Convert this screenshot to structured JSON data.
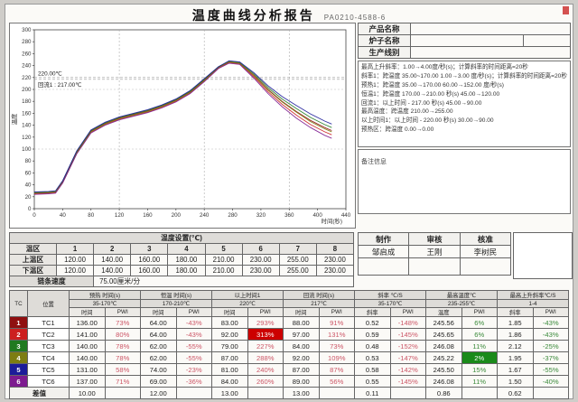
{
  "title": {
    "main": "温度曲线分析报告",
    "code": "PA0210-4588-6"
  },
  "info_panel": {
    "fields": [
      {
        "label": "产品名称",
        "value": "",
        "split": false
      },
      {
        "label": "炉子名称",
        "value": "",
        "split": true
      },
      {
        "label": "生产线别",
        "value": "",
        "split": false
      }
    ],
    "spec_lines": [
      "最高上升斜率：1.00→4.00度/秒(s)；计算斜率的时间距离=20秒",
      "斜率1：跨温度 35.00~170.00  1.00→3.00 度/秒(s)；计算斜率的时间距离=20秒",
      "预热1：跨温度 35.00→170.00  60.00→152.00 度/秒(s)",
      "恒温1：跨温度 170.00→210.00 秒(s)  45.00→120.00",
      "回流1：以上时间 - 217.00 秒(s)  45.00→90.00",
      "最高温度：跨温度 210.00→255.00",
      "以上时间1：以上时间 - 220.00 秒(s)  30.00→90.00",
      "预热区：跨温度 0.00→0.00"
    ],
    "note_label": "备注信息"
  },
  "chart_data": {
    "type": "line",
    "title": "",
    "xlabel": "时间(秒)",
    "ylabel": "温度",
    "xlim": [
      0,
      440
    ],
    "ylim": [
      0,
      300
    ],
    "x_tick_step": 40,
    "y_tick_step": 20,
    "grid_x_dashed": [
      120,
      240,
      360
    ],
    "grid_y_dashed": [
      100,
      200
    ],
    "ref_lines": [
      {
        "y": 220,
        "label": "220.00℃"
      },
      {
        "y": 217,
        "label": "回流1 : 217.00℃"
      }
    ],
    "x": [
      0,
      20,
      30,
      40,
      60,
      80,
      100,
      120,
      140,
      160,
      180,
      200,
      220,
      240,
      260,
      275,
      290,
      310,
      330,
      350,
      370,
      390,
      410,
      420
    ],
    "series": [
      {
        "name": "TC1",
        "color": "#8f1010",
        "values": [
          26,
          27,
          28,
          45,
          95,
          130,
          143,
          152,
          158,
          164,
          172,
          182,
          196,
          216,
          237,
          246,
          244,
          224,
          200,
          180,
          163,
          148,
          136,
          131
        ]
      },
      {
        "name": "TC2",
        "color": "#cc1f1f",
        "values": [
          25,
          26,
          27,
          44,
          93,
          128,
          141,
          150,
          156,
          162,
          170,
          180,
          194,
          214,
          236,
          245,
          243,
          221,
          196,
          175,
          157,
          141,
          129,
          124
        ]
      },
      {
        "name": "TC3",
        "color": "#207a20",
        "values": [
          27,
          28,
          29,
          46,
          96,
          131,
          144,
          153,
          159,
          165,
          173,
          183,
          197,
          217,
          238,
          247,
          245,
          226,
          203,
          184,
          168,
          153,
          141,
          136
        ]
      },
      {
        "name": "TC4",
        "color": "#7d7d12",
        "values": [
          26,
          27,
          28,
          45,
          94,
          129,
          142,
          151,
          157,
          163,
          171,
          181,
          195,
          215,
          237,
          246,
          244,
          223,
          199,
          179,
          162,
          146,
          134,
          129
        ]
      },
      {
        "name": "TC5",
        "color": "#1c1c99",
        "values": [
          28,
          29,
          30,
          47,
          97,
          132,
          145,
          154,
          160,
          166,
          174,
          184,
          198,
          218,
          238,
          248,
          246,
          228,
          206,
          188,
          173,
          159,
          147,
          142
        ]
      },
      {
        "name": "TC6",
        "color": "#7d1b8f",
        "values": [
          24,
          25,
          26,
          43,
          92,
          127,
          140,
          149,
          155,
          161,
          169,
          179,
          193,
          213,
          235,
          244,
          242,
          219,
          193,
          171,
          152,
          136,
          123,
          118
        ]
      }
    ]
  },
  "settings_table": {
    "title": "温度设置(℃)",
    "zone_header": "温区",
    "zones": [
      "1",
      "2",
      "3",
      "4",
      "5",
      "6",
      "7",
      "8"
    ],
    "rows": [
      {
        "label": "上温区",
        "values": [
          "120.00",
          "140.00",
          "160.00",
          "180.00",
          "210.00",
          "230.00",
          "255.00",
          "230.00"
        ]
      },
      {
        "label": "下温区",
        "values": [
          "120.00",
          "140.00",
          "160.00",
          "180.00",
          "210.00",
          "230.00",
          "255.00",
          "230.00"
        ]
      }
    ],
    "speed_label": "链条速度",
    "speed_value": "75.00厘米/分"
  },
  "signoff": {
    "headers": [
      "制作",
      "审核",
      "核准"
    ],
    "names": [
      "邹启成",
      "王刚",
      "李树民"
    ]
  },
  "bottom_table": {
    "tc_header": "TC",
    "pos_header": "位置",
    "groups": [
      {
        "name": "预热 时间(s)",
        "range": "35-170℃",
        "col1": "时间",
        "col2": "PWI",
        "pwi_class": "pwi-pink"
      },
      {
        "name": "恒温 时间(s)",
        "range": "170-210℃",
        "col1": "时间",
        "col2": "PWI",
        "pwi_class": "pwi-pink"
      },
      {
        "name": "以上时间1",
        "range": "220℃",
        "col1": "时间",
        "col2": "PWI",
        "pwi_class": "pwi-pink"
      },
      {
        "name": "回流 时间(s)",
        "range": "217℃",
        "col1": "时间",
        "col2": "PWI",
        "pwi_class": "pwi-pink"
      },
      {
        "name": "斜率 ℃/S",
        "range": "35-170℃",
        "col1": "斜率",
        "col2": "PWI",
        "pwi_class": "pwi-pink"
      },
      {
        "name": "最高温度℃",
        "range": "235-255℃",
        "col1": "温度",
        "col2": "PWI",
        "pwi_class": "pwi-green"
      },
      {
        "name": "最高上升斜率℃/S",
        "range": "1-4",
        "col1": "斜率",
        "col2": "PWI",
        "pwi_class": "pwi-green"
      }
    ],
    "rows": [
      {
        "tc": "1",
        "color": "#8f1010",
        "pos": "TC1",
        "values": [
          "136.00",
          "73%",
          "64.00",
          "-43%",
          "83.00",
          "293%",
          "88.00",
          "91%",
          "0.52",
          "-148%",
          "245.56",
          "6%",
          "1.85",
          "-43%"
        ],
        "highlight": {}
      },
      {
        "tc": "2",
        "color": "#cc1f1f",
        "pos": "TC2",
        "values": [
          "141.00",
          "80%",
          "64.00",
          "-43%",
          "92.00",
          "313%",
          "97.00",
          "131%",
          "0.59",
          "-145%",
          "245.65",
          "6%",
          "1.86",
          "-43%"
        ],
        "highlight": {
          "5": "red-bg"
        }
      },
      {
        "tc": "3",
        "color": "#207a20",
        "pos": "TC3",
        "values": [
          "140.00",
          "78%",
          "62.00",
          "-55%",
          "79.00",
          "227%",
          "84.00",
          "73%",
          "0.48",
          "-152%",
          "246.08",
          "11%",
          "2.12",
          "-25%"
        ],
        "highlight": {}
      },
      {
        "tc": "4",
        "color": "#7d7d12",
        "pos": "TC4",
        "values": [
          "140.00",
          "78%",
          "62.00",
          "-55%",
          "87.00",
          "288%",
          "92.00",
          "109%",
          "0.53",
          "-147%",
          "245.22",
          "2%",
          "1.95",
          "-37%"
        ],
        "highlight": {
          "11": "green-bg"
        }
      },
      {
        "tc": "5",
        "color": "#1c1c99",
        "pos": "TC5",
        "values": [
          "131.00",
          "58%",
          "74.00",
          "-23%",
          "81.00",
          "240%",
          "87.00",
          "87%",
          "0.58",
          "-142%",
          "245.50",
          "15%",
          "1.67",
          "-55%"
        ],
        "highlight": {}
      },
      {
        "tc": "6",
        "color": "#7d1b8f",
        "pos": "TC6",
        "values": [
          "137.00",
          "71%",
          "69.00",
          "-36%",
          "84.00",
          "260%",
          "89.00",
          "56%",
          "0.55",
          "-145%",
          "246.08",
          "11%",
          "1.50",
          "-40%"
        ],
        "highlight": {}
      }
    ],
    "diff_row": {
      "label": "差值",
      "values": [
        "10.00",
        "",
        "12.00",
        "",
        "13.00",
        "",
        "13.00",
        "",
        "0.11",
        "",
        "0.86",
        "",
        "0.62",
        ""
      ]
    }
  }
}
